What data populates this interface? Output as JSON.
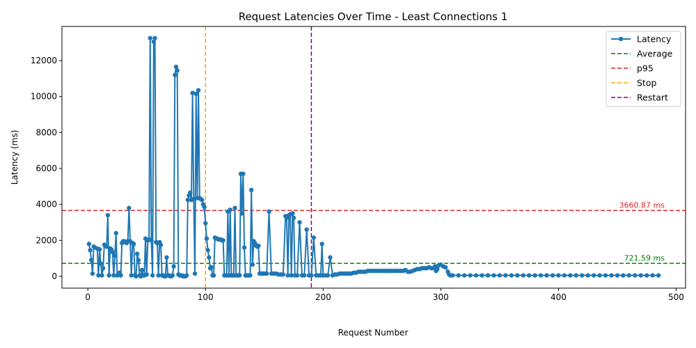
{
  "chart_data": {
    "type": "line",
    "title": "Request Latencies Over Time - Least Connections 1",
    "xlabel": "Request Number",
    "ylabel": "Latency (ms)",
    "xlim": [
      -22,
      508
    ],
    "ylim": [
      -660,
      13900
    ],
    "xticks": [
      0,
      100,
      200,
      300,
      400,
      500
    ],
    "yticks": [
      0,
      2000,
      4000,
      6000,
      8000,
      10000,
      12000
    ],
    "grid": false,
    "legend": "top-right",
    "series": [
      {
        "name": "Latency",
        "color": "#1f77b4",
        "points": [
          [
            1,
            1800
          ],
          [
            2,
            1450
          ],
          [
            3,
            900
          ],
          [
            4,
            150
          ],
          [
            5,
            1650
          ],
          [
            6,
            1600
          ],
          [
            8,
            1550
          ],
          [
            9,
            50
          ],
          [
            10,
            1500
          ],
          [
            11,
            700
          ],
          [
            12,
            50
          ],
          [
            13,
            450
          ],
          [
            14,
            1750
          ],
          [
            16,
            1650
          ],
          [
            17,
            3400
          ],
          [
            18,
            50
          ],
          [
            19,
            1550
          ],
          [
            20,
            1500
          ],
          [
            21,
            1350
          ],
          [
            22,
            50
          ],
          [
            23,
            1150
          ],
          [
            24,
            2400
          ],
          [
            25,
            50
          ],
          [
            26,
            100
          ],
          [
            27,
            200
          ],
          [
            28,
            50
          ],
          [
            29,
            1850
          ],
          [
            30,
            1950
          ],
          [
            31,
            1950
          ],
          [
            32,
            1900
          ],
          [
            33,
            1850
          ],
          [
            34,
            1950
          ],
          [
            35,
            3800
          ],
          [
            36,
            1950
          ],
          [
            37,
            50
          ],
          [
            38,
            1850
          ],
          [
            39,
            1800
          ],
          [
            40,
            50
          ],
          [
            41,
            0
          ],
          [
            42,
            1250
          ],
          [
            43,
            900
          ],
          [
            44,
            50
          ],
          [
            45,
            0
          ],
          [
            46,
            350
          ],
          [
            47,
            50
          ],
          [
            48,
            50
          ],
          [
            49,
            2100
          ],
          [
            50,
            100
          ],
          [
            51,
            2000
          ],
          [
            52,
            2050
          ],
          [
            53,
            13250
          ],
          [
            54,
            2000
          ],
          [
            55,
            50
          ],
          [
            56,
            13050
          ],
          [
            57,
            13250
          ],
          [
            58,
            1900
          ],
          [
            59,
            1850
          ],
          [
            60,
            50
          ],
          [
            61,
            1900
          ],
          [
            62,
            1750
          ],
          [
            63,
            50
          ],
          [
            64,
            50
          ],
          [
            65,
            0
          ],
          [
            66,
            0
          ],
          [
            67,
            1050
          ],
          [
            68,
            50
          ],
          [
            69,
            50
          ],
          [
            70,
            0
          ],
          [
            71,
            0
          ],
          [
            72,
            50
          ],
          [
            73,
            550
          ],
          [
            74,
            11200
          ],
          [
            75,
            11650
          ],
          [
            76,
            11450
          ],
          [
            77,
            100
          ],
          [
            78,
            50
          ],
          [
            79,
            50
          ],
          [
            80,
            50
          ],
          [
            81,
            0
          ],
          [
            82,
            0
          ],
          [
            83,
            0
          ],
          [
            84,
            50
          ],
          [
            85,
            4250
          ],
          [
            86,
            4500
          ],
          [
            87,
            4650
          ],
          [
            88,
            4250
          ],
          [
            89,
            10200
          ],
          [
            90,
            4300
          ],
          [
            91,
            150
          ],
          [
            92,
            10150
          ],
          [
            93,
            4350
          ],
          [
            94,
            10350
          ],
          [
            95,
            4350
          ],
          [
            96,
            4300
          ],
          [
            97,
            4250
          ],
          [
            98,
            4000
          ],
          [
            99,
            3850
          ],
          [
            100,
            2950
          ],
          [
            101,
            2100
          ],
          [
            102,
            1450
          ],
          [
            103,
            1050
          ],
          [
            104,
            450
          ],
          [
            105,
            500
          ],
          [
            106,
            50
          ],
          [
            107,
            50
          ],
          [
            108,
            2150
          ],
          [
            109,
            2100
          ],
          [
            110,
            2100
          ],
          [
            111,
            2050
          ],
          [
            112,
            2050
          ],
          [
            113,
            2050
          ],
          [
            114,
            2000
          ],
          [
            115,
            2000
          ],
          [
            116,
            50
          ],
          [
            117,
            50
          ],
          [
            118,
            50
          ],
          [
            119,
            3600
          ],
          [
            120,
            50
          ],
          [
            121,
            3700
          ],
          [
            122,
            50
          ],
          [
            123,
            50
          ],
          [
            124,
            50
          ],
          [
            125,
            3800
          ],
          [
            126,
            50
          ],
          [
            127,
            50
          ],
          [
            128,
            50
          ],
          [
            129,
            50
          ],
          [
            130,
            5700
          ],
          [
            131,
            3500
          ],
          [
            132,
            5700
          ],
          [
            133,
            1600
          ],
          [
            134,
            50
          ],
          [
            135,
            50
          ],
          [
            136,
            50
          ],
          [
            137,
            50
          ],
          [
            138,
            50
          ],
          [
            139,
            4800
          ],
          [
            140,
            650
          ],
          [
            141,
            1950
          ],
          [
            142,
            1850
          ],
          [
            143,
            1700
          ],
          [
            144,
            1650
          ],
          [
            145,
            1700
          ],
          [
            146,
            150
          ],
          [
            147,
            150
          ],
          [
            148,
            150
          ],
          [
            149,
            150
          ],
          [
            150,
            150
          ],
          [
            152,
            150
          ],
          [
            154,
            3600
          ],
          [
            156,
            150
          ],
          [
            158,
            150
          ],
          [
            160,
            150
          ],
          [
            162,
            100
          ],
          [
            164,
            100
          ],
          [
            166,
            100
          ],
          [
            168,
            3350
          ],
          [
            169,
            3250
          ],
          [
            170,
            50
          ],
          [
            171,
            3400
          ],
          [
            172,
            3450
          ],
          [
            173,
            50
          ],
          [
            174,
            3500
          ],
          [
            175,
            3250
          ],
          [
            176,
            50
          ],
          [
            178,
            50
          ],
          [
            180,
            3000
          ],
          [
            182,
            50
          ],
          [
            184,
            50
          ],
          [
            186,
            2600
          ],
          [
            188,
            50
          ],
          [
            190,
            50
          ],
          [
            192,
            2150
          ],
          [
            194,
            50
          ],
          [
            196,
            50
          ],
          [
            198,
            50
          ],
          [
            199,
            1800
          ],
          [
            200,
            50
          ],
          [
            202,
            50
          ],
          [
            204,
            50
          ],
          [
            206,
            1050
          ],
          [
            208,
            50
          ],
          [
            210,
            100
          ],
          [
            212,
            100
          ],
          [
            214,
            150
          ],
          [
            216,
            150
          ],
          [
            218,
            150
          ],
          [
            220,
            150
          ],
          [
            222,
            150
          ],
          [
            224,
            150
          ],
          [
            226,
            200
          ],
          [
            228,
            200
          ],
          [
            230,
            250
          ],
          [
            232,
            250
          ],
          [
            234,
            250
          ],
          [
            236,
            250
          ],
          [
            238,
            300
          ],
          [
            240,
            300
          ],
          [
            242,
            300
          ],
          [
            244,
            300
          ],
          [
            246,
            300
          ],
          [
            248,
            300
          ],
          [
            250,
            300
          ],
          [
            252,
            300
          ],
          [
            254,
            300
          ],
          [
            256,
            300
          ],
          [
            258,
            300
          ],
          [
            260,
            300
          ],
          [
            262,
            300
          ],
          [
            264,
            300
          ],
          [
            266,
            300
          ],
          [
            268,
            300
          ],
          [
            270,
            350
          ],
          [
            272,
            250
          ],
          [
            274,
            250
          ],
          [
            276,
            300
          ],
          [
            278,
            350
          ],
          [
            280,
            400
          ],
          [
            282,
            400
          ],
          [
            284,
            450
          ],
          [
            286,
            450
          ],
          [
            288,
            450
          ],
          [
            290,
            500
          ],
          [
            292,
            450
          ],
          [
            294,
            450
          ],
          [
            295,
            550
          ],
          [
            296,
            300
          ],
          [
            297,
            400
          ],
          [
            298,
            600
          ],
          [
            300,
            650
          ],
          [
            302,
            550
          ],
          [
            304,
            500
          ],
          [
            306,
            250
          ],
          [
            307,
            100
          ],
          [
            308,
            50
          ],
          [
            310,
            50
          ],
          [
            315,
            50
          ],
          [
            320,
            50
          ],
          [
            325,
            50
          ],
          [
            330,
            50
          ],
          [
            335,
            50
          ],
          [
            340,
            50
          ],
          [
            345,
            50
          ],
          [
            350,
            50
          ],
          [
            355,
            50
          ],
          [
            360,
            50
          ],
          [
            365,
            50
          ],
          [
            370,
            50
          ],
          [
            375,
            50
          ],
          [
            380,
            50
          ],
          [
            385,
            50
          ],
          [
            390,
            50
          ],
          [
            395,
            50
          ],
          [
            400,
            50
          ],
          [
            405,
            50
          ],
          [
            410,
            50
          ],
          [
            415,
            50
          ],
          [
            420,
            50
          ],
          [
            425,
            50
          ],
          [
            430,
            50
          ],
          [
            435,
            50
          ],
          [
            440,
            50
          ],
          [
            445,
            50
          ],
          [
            450,
            50
          ],
          [
            455,
            50
          ],
          [
            460,
            50
          ],
          [
            465,
            50
          ],
          [
            470,
            50
          ],
          [
            475,
            50
          ],
          [
            480,
            50
          ],
          [
            485,
            50
          ]
        ]
      }
    ],
    "hlines": [
      {
        "name": "Average",
        "y": 721.59,
        "color": "#008000",
        "label": "721.59 ms"
      },
      {
        "name": "p95",
        "y": 3660.87,
        "color": "#d62728",
        "label": "3660.87 ms"
      }
    ],
    "vlines": [
      {
        "name": "Stop",
        "x": 100,
        "color": "#ffa500"
      },
      {
        "name": "Restart",
        "x": 190,
        "color": "#800080"
      }
    ]
  }
}
